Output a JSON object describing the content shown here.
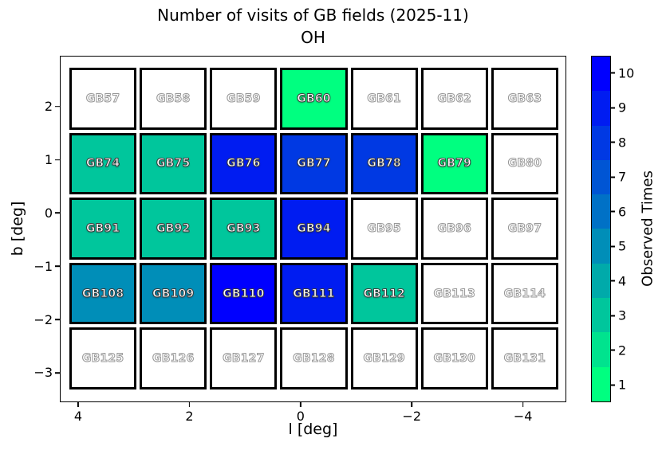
{
  "figure": {
    "title": "Number of visits of GB fields (2025-11)",
    "subtitle": "OH"
  },
  "chart_data": {
    "type": "heatmap",
    "title": "Number of visits of GB fields (2025-11)",
    "subtitle": "OH",
    "xlabel": "l [deg]",
    "ylabel": "b [deg]",
    "x_ticks": [
      4,
      2,
      0,
      -2,
      -4
    ],
    "x_range": [
      4.33,
      -4.78
    ],
    "x_axis_reversed": true,
    "y_ticks": [
      2,
      1,
      0,
      -1,
      -2,
      -3
    ],
    "y_range": [
      2.95,
      -3.55
    ],
    "grid_shape": {
      "rows": 5,
      "cols": 7
    },
    "colorbar": {
      "label": "Observed Times",
      "ticks": [
        1,
        2,
        3,
        4,
        5,
        6,
        7,
        8,
        9,
        10
      ],
      "min": 1,
      "max": 10,
      "colors": [
        "#00FF80",
        "#00E38E",
        "#00C69C",
        "#00AAAA",
        "#008EB8",
        "#0071C6",
        "#0055D4",
        "#0039E3",
        "#001CF1",
        "#0000FF"
      ]
    },
    "empty_cell_color": "#FFFFFF",
    "rows": [
      {
        "b": 2,
        "fields": [
          {
            "label": "GB57",
            "visits": null
          },
          {
            "label": "GB58",
            "visits": null
          },
          {
            "label": "GB59",
            "visits": null
          },
          {
            "label": "GB60",
            "visits": 1
          },
          {
            "label": "GB61",
            "visits": null
          },
          {
            "label": "GB62",
            "visits": null
          },
          {
            "label": "GB63",
            "visits": null
          }
        ]
      },
      {
        "b": 1,
        "fields": [
          {
            "label": "GB74",
            "visits": 3
          },
          {
            "label": "GB75",
            "visits": 3
          },
          {
            "label": "GB76",
            "visits": 9
          },
          {
            "label": "GB77",
            "visits": 8
          },
          {
            "label": "GB78",
            "visits": 8
          },
          {
            "label": "GB79",
            "visits": 1
          },
          {
            "label": "GB80",
            "visits": null
          }
        ]
      },
      {
        "b": 0,
        "fields": [
          {
            "label": "GB91",
            "visits": 3
          },
          {
            "label": "GB92",
            "visits": 3
          },
          {
            "label": "GB93",
            "visits": 3
          },
          {
            "label": "GB94",
            "visits": 9
          },
          {
            "label": "GB95",
            "visits": null
          },
          {
            "label": "GB96",
            "visits": null
          },
          {
            "label": "GB97",
            "visits": null
          }
        ]
      },
      {
        "b": -2,
        "fields": [
          {
            "label": "GB108",
            "visits": 5
          },
          {
            "label": "GB109",
            "visits": 5
          },
          {
            "label": "GB110",
            "visits": 10
          },
          {
            "label": "GB111",
            "visits": 9
          },
          {
            "label": "GB112",
            "visits": 3
          },
          {
            "label": "GB113",
            "visits": null
          },
          {
            "label": "GB114",
            "visits": null
          }
        ]
      },
      {
        "b": -3,
        "fields": [
          {
            "label": "GB125",
            "visits": null
          },
          {
            "label": "GB126",
            "visits": null
          },
          {
            "label": "GB127",
            "visits": null
          },
          {
            "label": "GB128",
            "visits": null
          },
          {
            "label": "GB129",
            "visits": null
          },
          {
            "label": "GB130",
            "visits": null
          },
          {
            "label": "GB131",
            "visits": null
          }
        ]
      }
    ]
  }
}
